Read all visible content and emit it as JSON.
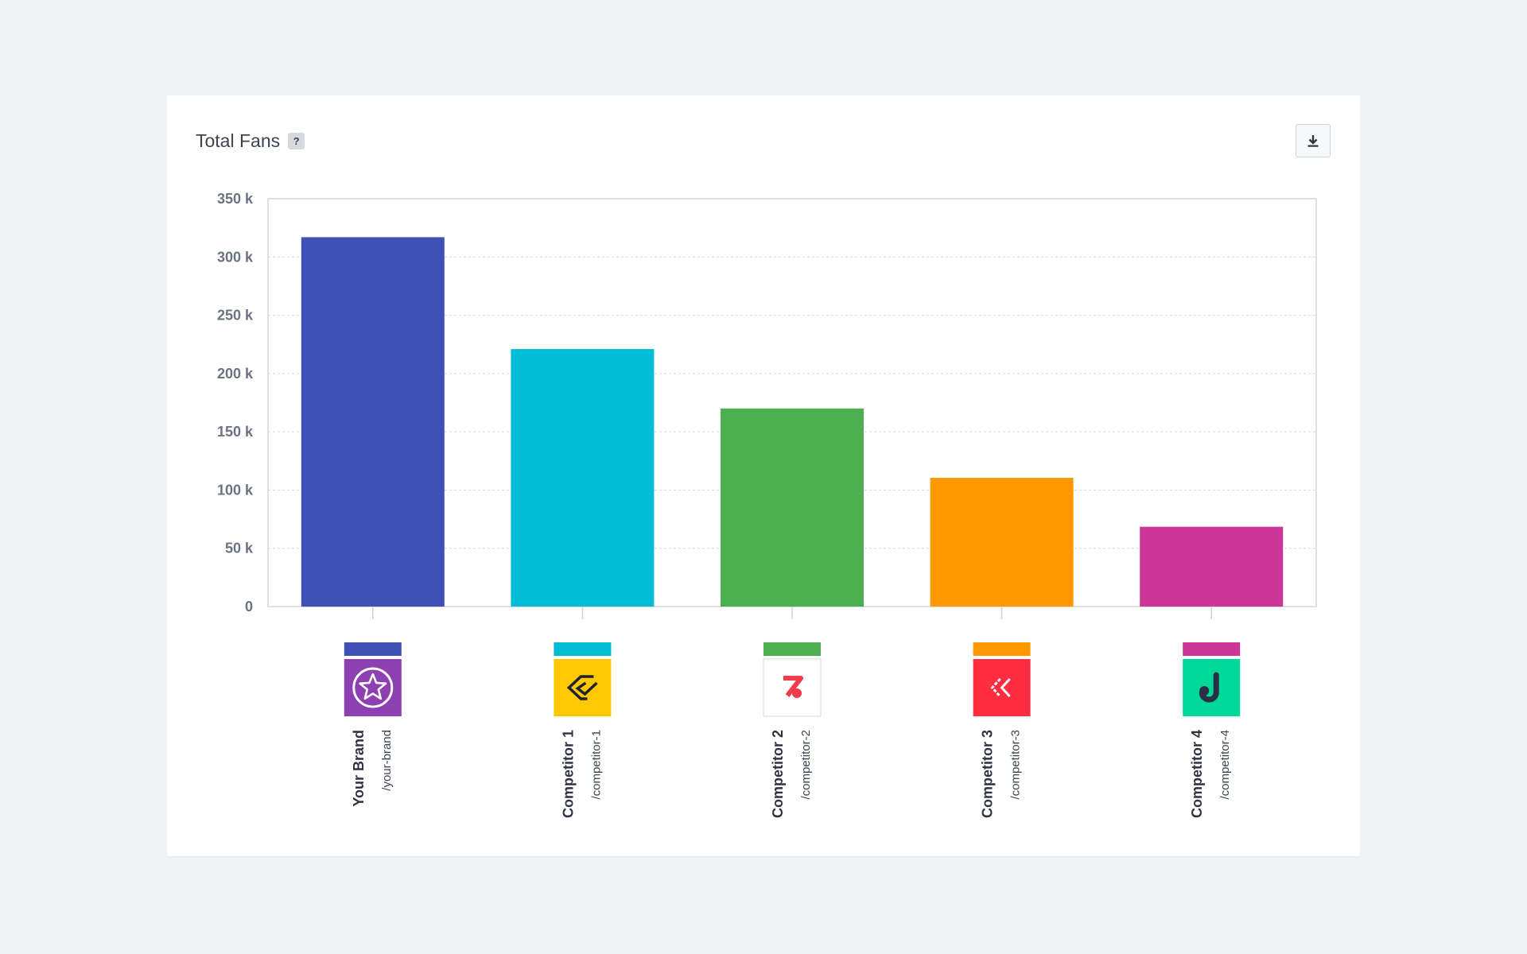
{
  "card": {
    "title": "Total Fans",
    "help_label": "?",
    "download_icon": "download-icon"
  },
  "chart_data": {
    "type": "bar",
    "title": "Total Fans",
    "xlabel": "",
    "ylabel": "",
    "ylim": [
      0,
      350000
    ],
    "yticks": [
      {
        "value": 0,
        "label": "0"
      },
      {
        "value": 50000,
        "label": "50 k"
      },
      {
        "value": 100000,
        "label": "100 k"
      },
      {
        "value": 150000,
        "label": "150 k"
      },
      {
        "value": 200000,
        "label": "200 k"
      },
      {
        "value": 250000,
        "label": "250 k"
      },
      {
        "value": 300000,
        "label": "300 k"
      },
      {
        "value": 350000,
        "label": "350 k"
      }
    ],
    "grid": true,
    "categories": [
      "Your Brand",
      "Competitor 1",
      "Competitor 2",
      "Competitor 3",
      "Competitor 4"
    ],
    "handles": [
      "/your-brand",
      "/competitor-1",
      "/competitor-2",
      "/competitor-3",
      "/competitor-4"
    ],
    "values": [
      317000,
      221000,
      170000,
      110500,
      68500
    ],
    "colors": [
      "#3f51b5",
      "#00bcd4",
      "#4caf50",
      "#ff9800",
      "#cc3697"
    ],
    "logos": [
      {
        "icon": "star-icon",
        "bg": "#8e3fb1"
      },
      {
        "icon": "chevron-logo-icon",
        "bg": "#ffc800"
      },
      {
        "icon": "z-logo-icon",
        "bg": "#ffffff"
      },
      {
        "icon": "double-chevron-logo-icon",
        "bg": "#ff2d3f"
      },
      {
        "icon": "j-logo-icon",
        "bg": "#00d89a"
      }
    ]
  }
}
